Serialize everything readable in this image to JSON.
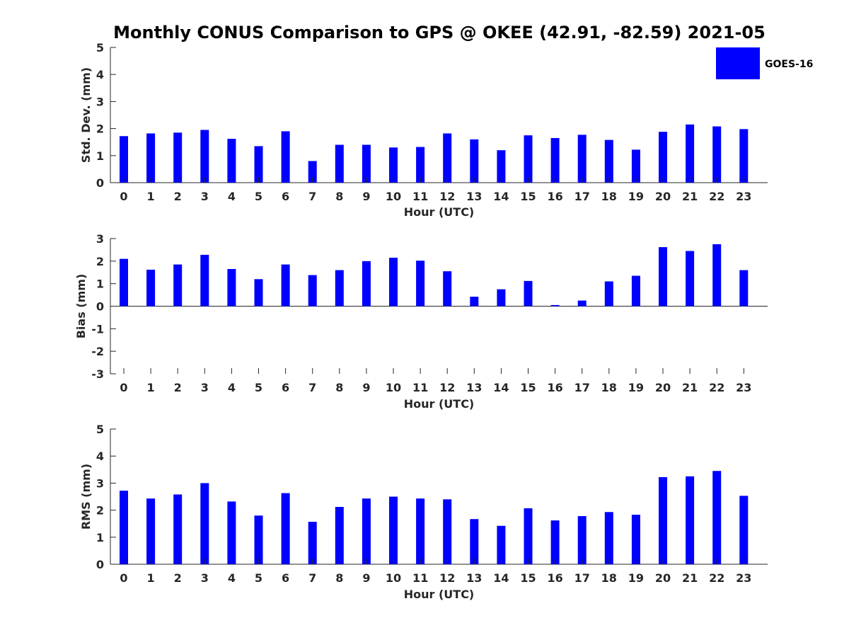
{
  "title": "Monthly CONUS Comparison to GPS @ OKEE (42.91, -82.59) 2021-05",
  "colors": {
    "bar": "#0000ff",
    "axis": "#262626",
    "title": "#000000"
  },
  "legend": {
    "label": "GOES-16",
    "position": "top-right"
  },
  "chart_data": [
    {
      "type": "bar",
      "ylabel": "Std. Dev. (mm)",
      "xlabel": "Hour (UTC)",
      "ylim": [
        0,
        5
      ],
      "yticks": [
        0,
        1,
        2,
        3,
        4,
        5
      ],
      "categories": [
        0,
        1,
        2,
        3,
        4,
        5,
        6,
        7,
        8,
        9,
        10,
        11,
        12,
        13,
        14,
        15,
        16,
        17,
        18,
        19,
        20,
        21,
        22,
        23
      ],
      "series": [
        {
          "name": "GOES-16",
          "values": [
            1.72,
            1.82,
            1.85,
            1.95,
            1.62,
            1.35,
            1.9,
            0.8,
            1.4,
            1.4,
            1.3,
            1.32,
            1.82,
            1.6,
            1.2,
            1.75,
            1.65,
            1.77,
            1.58,
            1.22,
            1.88,
            2.15,
            2.08,
            1.98
          ]
        }
      ]
    },
    {
      "type": "bar",
      "ylabel": "Bias (mm)",
      "xlabel": "Hour (UTC)",
      "ylim": [
        -3,
        3
      ],
      "yticks": [
        -3,
        -2,
        -1,
        0,
        1,
        2,
        3
      ],
      "baseline": 0,
      "categories": [
        0,
        1,
        2,
        3,
        4,
        5,
        6,
        7,
        8,
        9,
        10,
        11,
        12,
        13,
        14,
        15,
        16,
        17,
        18,
        19,
        20,
        21,
        22,
        23
      ],
      "series": [
        {
          "name": "GOES-16",
          "values": [
            2.1,
            1.62,
            1.85,
            2.28,
            1.65,
            1.2,
            1.85,
            1.38,
            1.6,
            2.0,
            2.15,
            2.02,
            1.55,
            0.42,
            0.75,
            1.12,
            0.05,
            0.25,
            1.1,
            1.35,
            2.62,
            2.45,
            2.75,
            1.6
          ]
        }
      ]
    },
    {
      "type": "bar",
      "ylabel": "RMS (mm)",
      "xlabel": "Hour (UTC)",
      "ylim": [
        0,
        5
      ],
      "yticks": [
        0,
        1,
        2,
        3,
        4,
        5
      ],
      "categories": [
        0,
        1,
        2,
        3,
        4,
        5,
        6,
        7,
        8,
        9,
        10,
        11,
        12,
        13,
        14,
        15,
        16,
        17,
        18,
        19,
        20,
        21,
        22,
        23
      ],
      "series": [
        {
          "name": "GOES-16",
          "values": [
            2.72,
            2.43,
            2.58,
            3.0,
            2.32,
            1.8,
            2.63,
            1.57,
            2.12,
            2.43,
            2.5,
            2.43,
            2.4,
            1.67,
            1.42,
            2.07,
            1.62,
            1.78,
            1.93,
            1.83,
            3.22,
            3.25,
            3.45,
            2.53
          ]
        }
      ]
    }
  ]
}
